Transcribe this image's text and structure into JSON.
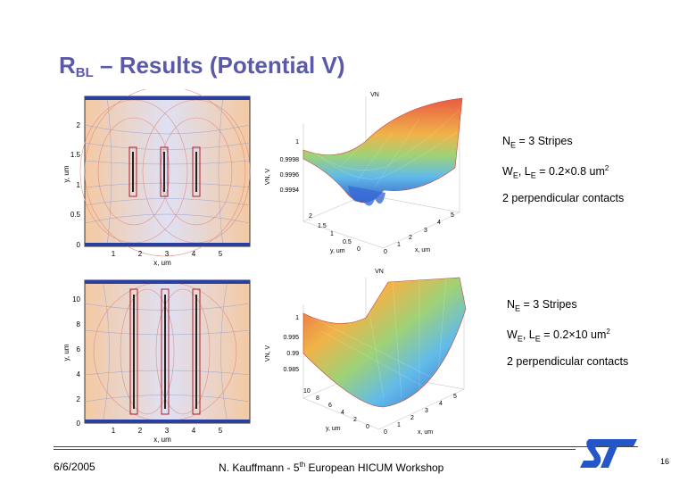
{
  "slide": {
    "title_main": "R",
    "title_sub": "BL",
    "title_rest": " – Results (Potential V)"
  },
  "plots": {
    "top": {
      "surface_title": "VN",
      "x_label": "x, um",
      "y_label": "y, um",
      "x_ticks": [
        "1",
        "2",
        "3",
        "4",
        "5"
      ],
      "y_ticks": [
        "0",
        "0.5",
        "1",
        "1.5",
        "2"
      ],
      "z_label": "VN, V",
      "z_ticks": [
        "1",
        "0.9998",
        "0.9996",
        "0.9994"
      ],
      "surf_y_label": "y, um",
      "surf_x_label": "x, um",
      "surf_y_ticks": [
        "2",
        "1.5",
        "1",
        "0.5",
        "0"
      ],
      "surf_x_ticks": [
        "0",
        "1",
        "2",
        "3",
        "4",
        "5"
      ]
    },
    "bottom": {
      "surface_title": "VN",
      "x_label": "x, um",
      "y_label": "y, um",
      "x_ticks": [
        "1",
        "2",
        "3",
        "4",
        "5"
      ],
      "y_ticks": [
        "0",
        "2",
        "4",
        "6",
        "8",
        "10"
      ],
      "z_label": "VN, V",
      "z_ticks": [
        "1",
        "0.995",
        "0.99",
        "0.985"
      ],
      "surf_y_label": "y, um",
      "surf_x_label": "x, um",
      "surf_y_ticks": [
        "10",
        "8",
        "6",
        "4",
        "2",
        "0"
      ],
      "surf_x_ticks": [
        "0",
        "1",
        "2",
        "3",
        "4",
        "5"
      ]
    }
  },
  "annotations": {
    "top": {
      "ne_a": "N",
      "ne_sub": "E",
      "ne_b": " = 3 Stripes",
      "w_a": "W",
      "w_sub1": "E",
      "w_b": ", L",
      "w_sub2": "E",
      "w_c": " = 0.2×0.8 um",
      "w_sup": "2",
      "contacts": "2 perpendicular contacts"
    },
    "bottom": {
      "ne_a": "N",
      "ne_sub": "E",
      "ne_b": " = 3 Stripes",
      "w_a": "W",
      "w_sub1": "E",
      "w_b": ", L",
      "w_sub2": "E",
      "w_c": " = 0.2×10 um",
      "w_sup": "2",
      "contacts": "2 perpendicular contacts"
    }
  },
  "footer": {
    "date": "6/6/2005",
    "credit_a": "N. Kauffmann - 5",
    "credit_sup": "th",
    "credit_b": " European HICUM Workshop",
    "page": "16"
  }
}
